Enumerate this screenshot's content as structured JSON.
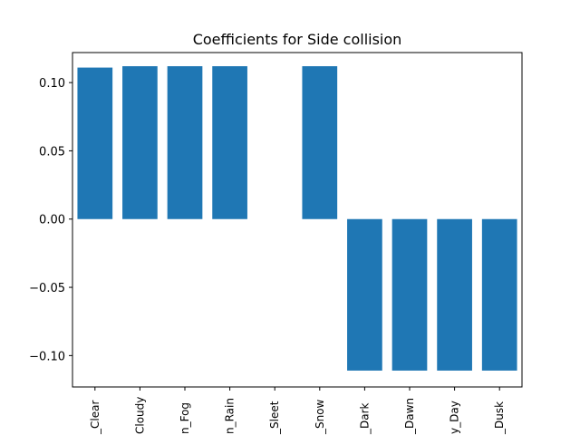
{
  "chart_data": {
    "type": "bar",
    "title": "Coefficients for Side collision",
    "xlabel": "",
    "ylabel": "",
    "categories": [
      "_Clear",
      "Cloudy",
      "n_Fog",
      "n_Rain",
      "_Sleet",
      "_Snow",
      "_Dark",
      "_Dawn",
      "y_Day",
      "_Dusk"
    ],
    "values": [
      0.111,
      0.112,
      0.112,
      0.112,
      0.0,
      0.112,
      -0.111,
      -0.111,
      -0.111,
      -0.111
    ],
    "ylim": [
      -0.123,
      0.122
    ],
    "yticks": [
      0.1,
      0.05,
      0.0,
      -0.05,
      -0.1
    ],
    "ytick_labels": [
      "0.10",
      "0.05",
      "0.00",
      "−0.05",
      "−0.10"
    ],
    "colors": {
      "bar": "#1f77b4",
      "axis": "#000000",
      "background": "#ffffff"
    },
    "grid": false,
    "legend": "none"
  }
}
